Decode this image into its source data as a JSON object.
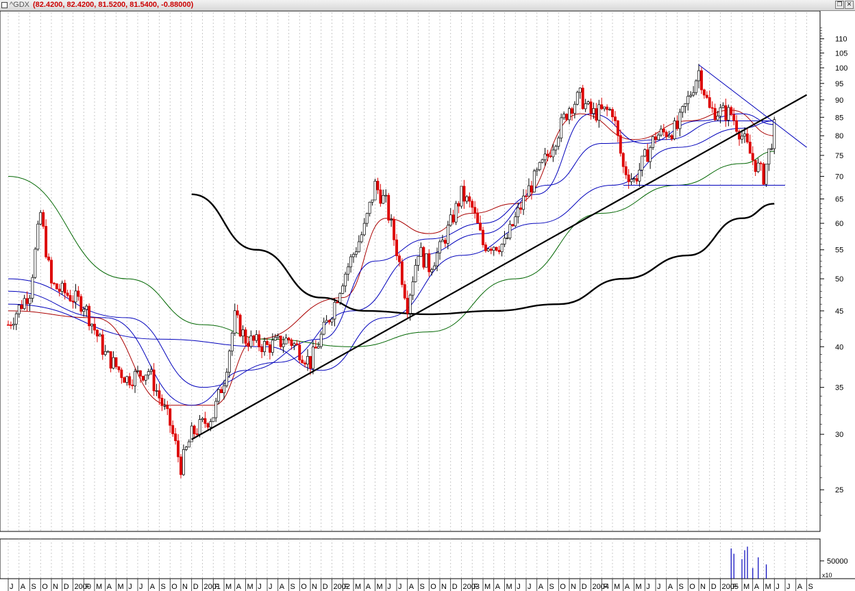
{
  "window": {
    "symbol": "^GDX",
    "ohlc": "(82.4200, 82.4200, 81.5200, 81.5400, -0.88000)",
    "restore_icon": "restore-window-icon",
    "close_icon": "close-window-icon"
  },
  "colors": {
    "up": "#ffffff",
    "down": "#dd0000",
    "ma_red": "#aa0000",
    "ma_blue": "#0000bb",
    "ma_green": "#006600",
    "long_ma": "#000000",
    "trend": "#000000",
    "grid": "#bbbbbb"
  },
  "chart_data": [
    {
      "type": "candlestick",
      "scale": "log",
      "ylim": [
        22,
        120
      ],
      "y_ticks": [
        25,
        30,
        35,
        40,
        45,
        50,
        55,
        60,
        65,
        70,
        75,
        80,
        85,
        90,
        95,
        100,
        105,
        110
      ],
      "x_month_labels": [
        "J",
        "A",
        "S",
        "O",
        "N",
        "D",
        "2000",
        "F",
        "M",
        "A",
        "M",
        "J",
        "J",
        "A",
        "S",
        "O",
        "N",
        "D",
        "2001",
        "F",
        "M",
        "A",
        "M",
        "J",
        "J",
        "A",
        "S",
        "O",
        "N",
        "D",
        "2002",
        "F",
        "M",
        "A",
        "M",
        "J",
        "J",
        "A",
        "S",
        "O",
        "N",
        "D",
        "2003",
        "F",
        "M",
        "A",
        "M",
        "J",
        "J",
        "A",
        "S",
        "O",
        "N",
        "D",
        "2004",
        "F",
        "M",
        "A",
        "M",
        "J",
        "J",
        "A",
        "S",
        "O",
        "N",
        "D",
        "2005",
        "F",
        "M",
        "A",
        "M",
        "J",
        "J",
        "A",
        "S"
      ],
      "x_range": [
        "1999-07",
        "2005-09"
      ],
      "grid": "vertical dotted",
      "price_anchors": [
        {
          "date": "1999-07",
          "close": 43
        },
        {
          "date": "1999-09",
          "close": 48
        },
        {
          "date": "1999-10",
          "close": 62
        },
        {
          "date": "1999-11",
          "close": 49
        },
        {
          "date": "2000-02",
          "close": 46
        },
        {
          "date": "2000-04",
          "close": 39
        },
        {
          "date": "2000-06",
          "close": 36
        },
        {
          "date": "2000-08",
          "close": 37
        },
        {
          "date": "2000-10",
          "close": 31
        },
        {
          "date": "2000-11",
          "close": 27
        },
        {
          "date": "2000-12",
          "close": 30
        },
        {
          "date": "2001-02",
          "close": 32
        },
        {
          "date": "2001-03",
          "close": 36
        },
        {
          "date": "2001-04",
          "close": 44
        },
        {
          "date": "2001-05",
          "close": 41
        },
        {
          "date": "2001-07",
          "close": 40
        },
        {
          "date": "2001-09",
          "close": 41
        },
        {
          "date": "2001-11",
          "close": 38
        },
        {
          "date": "2002-01",
          "close": 45
        },
        {
          "date": "2002-02",
          "close": 50
        },
        {
          "date": "2002-04",
          "close": 59
        },
        {
          "date": "2002-05",
          "close": 68
        },
        {
          "date": "2002-06",
          "close": 64
        },
        {
          "date": "2002-07",
          "close": 55
        },
        {
          "date": "2002-08",
          "close": 46
        },
        {
          "date": "2002-09",
          "close": 55
        },
        {
          "date": "2002-10",
          "close": 52
        },
        {
          "date": "2002-11",
          "close": 55
        },
        {
          "date": "2002-12",
          "close": 60
        },
        {
          "date": "2003-01",
          "close": 66
        },
        {
          "date": "2003-02",
          "close": 63
        },
        {
          "date": "2003-03",
          "close": 56
        },
        {
          "date": "2003-05",
          "close": 56
        },
        {
          "date": "2003-07",
          "close": 66
        },
        {
          "date": "2003-09",
          "close": 75
        },
        {
          "date": "2003-11",
          "close": 88
        },
        {
          "date": "2003-12",
          "close": 91
        },
        {
          "date": "2004-01",
          "close": 86
        },
        {
          "date": "2004-03",
          "close": 87
        },
        {
          "date": "2004-04",
          "close": 72
        },
        {
          "date": "2004-05",
          "close": 69
        },
        {
          "date": "2004-07",
          "close": 80
        },
        {
          "date": "2004-09",
          "close": 82
        },
        {
          "date": "2004-11",
          "close": 99
        },
        {
          "date": "2004-12",
          "close": 87
        },
        {
          "date": "2005-02",
          "close": 86
        },
        {
          "date": "2005-03",
          "close": 80
        },
        {
          "date": "2005-04",
          "close": 74
        },
        {
          "date": "2005-05",
          "close": 70
        },
        {
          "date": "2005-06",
          "close": 82
        },
        {
          "date": "2005-06",
          "close": 81.54
        }
      ],
      "moving_averages": [
        {
          "color": "ma_red",
          "points": [
            [
              "1999-07",
              45
            ],
            [
              "2000-03",
              44
            ],
            [
              "2000-10",
              33
            ],
            [
              "2001-02",
              33
            ],
            [
              "2001-06",
              41
            ],
            [
              "2002-02",
              47
            ],
            [
              "2002-06",
              61
            ],
            [
              "2002-10",
              58
            ],
            [
              "2003-02",
              62
            ],
            [
              "2003-06",
              64
            ],
            [
              "2003-12",
              86
            ],
            [
              "2004-05",
              79
            ],
            [
              "2004-10",
              84
            ],
            [
              "2005-02",
              87
            ],
            [
              "2005-06",
              80
            ]
          ]
        },
        {
          "color": "ma_blue",
          "points": [
            [
              "1999-07",
              48
            ],
            [
              "2000-04",
              44
            ],
            [
              "2000-12",
              33
            ],
            [
              "2001-05",
              37
            ],
            [
              "2001-12",
              41
            ],
            [
              "2002-05",
              53
            ],
            [
              "2002-10",
              57
            ],
            [
              "2003-03",
              60
            ],
            [
              "2003-08",
              66
            ],
            [
              "2004-01",
              86
            ],
            [
              "2004-06",
              78
            ],
            [
              "2004-11",
              84
            ],
            [
              "2005-03",
              86
            ],
            [
              "2005-06",
              83
            ]
          ]
        },
        {
          "color": "ma_blue",
          "points": [
            [
              "1999-07",
              50
            ],
            [
              "2000-06",
              44
            ],
            [
              "2001-01",
              35
            ],
            [
              "2001-08",
              38
            ],
            [
              "2002-03",
              45
            ],
            [
              "2002-09",
              54
            ],
            [
              "2003-03",
              58
            ],
            [
              "2003-09",
              68
            ],
            [
              "2004-02",
              78
            ],
            [
              "2004-08",
              79
            ],
            [
              "2005-01",
              84
            ],
            [
              "2005-06",
              84
            ]
          ]
        },
        {
          "color": "ma_blue",
          "points": [
            [
              "1999-07",
              46
            ],
            [
              "2000-09",
              41
            ],
            [
              "2001-07",
              40
            ],
            [
              "2001-12",
              37
            ],
            [
              "2002-06",
              44
            ],
            [
              "2003-01",
              54
            ],
            [
              "2003-08",
              60
            ],
            [
              "2004-03",
              68
            ],
            [
              "2004-09",
              77
            ],
            [
              "2005-03",
              82
            ],
            [
              "2005-06",
              84
            ]
          ]
        },
        {
          "color": "ma_green",
          "points": [
            [
              "1999-07",
              70
            ],
            [
              "2000-06",
              50
            ],
            [
              "2001-01",
              43
            ],
            [
              "2001-07",
              41
            ],
            [
              "2002-03",
              40
            ],
            [
              "2002-10",
              42
            ],
            [
              "2003-06",
              50
            ],
            [
              "2004-02",
              62
            ],
            [
              "2004-09",
              68
            ],
            [
              "2005-03",
              73
            ],
            [
              "2005-06",
              76
            ]
          ]
        },
        {
          "color": "long_ma",
          "points": [
            [
              "2000-12",
              66
            ],
            [
              "2001-06",
              55
            ],
            [
              "2001-12",
              47
            ],
            [
              "2002-04",
              45
            ],
            [
              "2002-10",
              44.5
            ],
            [
              "2003-04",
              45
            ],
            [
              "2003-10",
              46
            ],
            [
              "2004-04",
              50
            ],
            [
              "2004-10",
              54
            ],
            [
              "2005-03",
              61
            ],
            [
              "2005-06",
              64
            ]
          ]
        }
      ],
      "trend_lines": [
        {
          "color": "trend",
          "from": [
            "2000-12",
            29.5
          ],
          "to": [
            "2005-09",
            91.5
          ]
        },
        {
          "color": "ma_blue",
          "from": [
            "2004-11",
            101
          ],
          "to": [
            "2005-09",
            77
          ]
        },
        {
          "color": "ma_blue",
          "from": [
            "2004-04",
            68
          ],
          "to": [
            "2005-07",
            68
          ]
        }
      ]
    },
    {
      "type": "bar",
      "title": "",
      "y_ticks": [
        50000
      ],
      "multiplier_label": "x10",
      "note": "volume bars visible only from 2005-02 to 2005-05",
      "series": [
        {
          "x": [
            "2005-02",
            "2005-02",
            "2005-03",
            "2005-03",
            "2005-03",
            "2005-04",
            "2005-04",
            "2005-05"
          ],
          "values": [
            85000,
            70000,
            90000,
            55000,
            80000,
            60000,
            30000,
            40000
          ]
        }
      ]
    }
  ]
}
